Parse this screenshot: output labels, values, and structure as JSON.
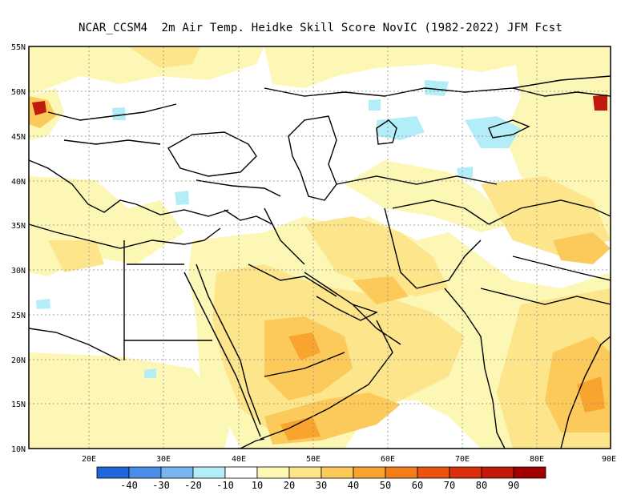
{
  "title": "NCAR_CCSM4  2m Air Temp. Heidke Skill Score NovIC (1982-2022) JFM Fcst",
  "lat_labels": [
    "55N",
    "50N",
    "45N",
    "40N",
    "35N",
    "30N",
    "25N",
    "20N",
    "15N",
    "10N"
  ],
  "lon_labels": [
    "20E",
    "30E",
    "40E",
    "50E",
    "60E",
    "70E",
    "80E",
    "90E"
  ],
  "colorbar": {
    "colors": [
      "#2166d9",
      "#4a8ee8",
      "#7ab5f0",
      "#b3eef8",
      "#ffffff",
      "#fdf7b6",
      "#fde58c",
      "#fbca5a",
      "#f9a42e",
      "#f37d1a",
      "#ea5410",
      "#d8300c",
      "#c01a0a",
      "#a00000"
    ],
    "labels": [
      "-40",
      "-30",
      "-20",
      "-10",
      "10",
      "20",
      "30",
      "40",
      "50",
      "60",
      "70",
      "80",
      "90"
    ]
  },
  "map_colors": {
    "score_10_20": "#fdf7b6",
    "score_20_30": "#fde58c",
    "score_30_40": "#fbca5a",
    "score_40_50": "#f9a42e",
    "score_neg_10": "#b3eef8",
    "score_50_plus": "#c01a0a"
  }
}
